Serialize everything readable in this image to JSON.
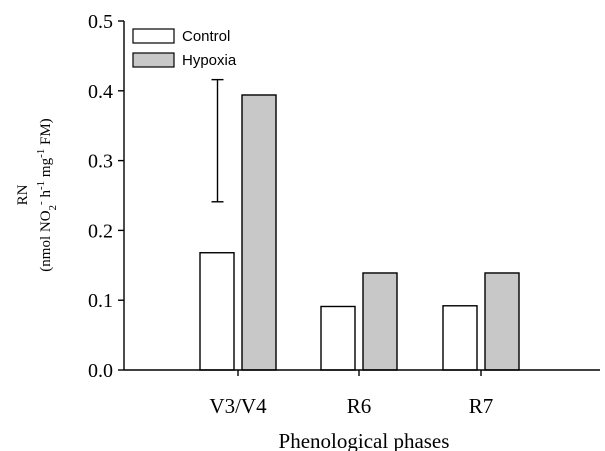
{
  "chart_data": {
    "type": "bar",
    "categories": [
      "V3/V4",
      "R6",
      "R7"
    ],
    "series": [
      {
        "name": "Control",
        "values": [
          0.168,
          0.091,
          0.092
        ],
        "color": "#ffffff"
      },
      {
        "name": "Hypoxia",
        "values": [
          0.394,
          0.139,
          0.139
        ],
        "color": "#c8c8c8"
      }
    ],
    "error_bar": {
      "category": "V3/V4",
      "low": 0.241,
      "high": 0.416
    },
    "ylim": [
      0,
      0.5
    ],
    "yticks": [
      "0.0",
      "0.1",
      "0.2",
      "0.3",
      "0.4",
      "0.5"
    ],
    "xlabel": "Phenological phases",
    "ylabel": {
      "line1": "RN",
      "line2_parts": [
        {
          "text": "(nmol NO",
          "shift": "normal"
        },
        {
          "text": "2",
          "shift": "sub"
        },
        {
          "text": "-",
          "shift": "super"
        },
        {
          "text": " h",
          "shift": "normal"
        },
        {
          "text": "-1",
          "shift": "super"
        },
        {
          "text": " mg",
          "shift": "normal"
        },
        {
          "text": "-1",
          "shift": "super"
        },
        {
          "text": " FM)",
          "shift": "normal"
        }
      ]
    },
    "legend_position": "top-left",
    "grid": false
  }
}
